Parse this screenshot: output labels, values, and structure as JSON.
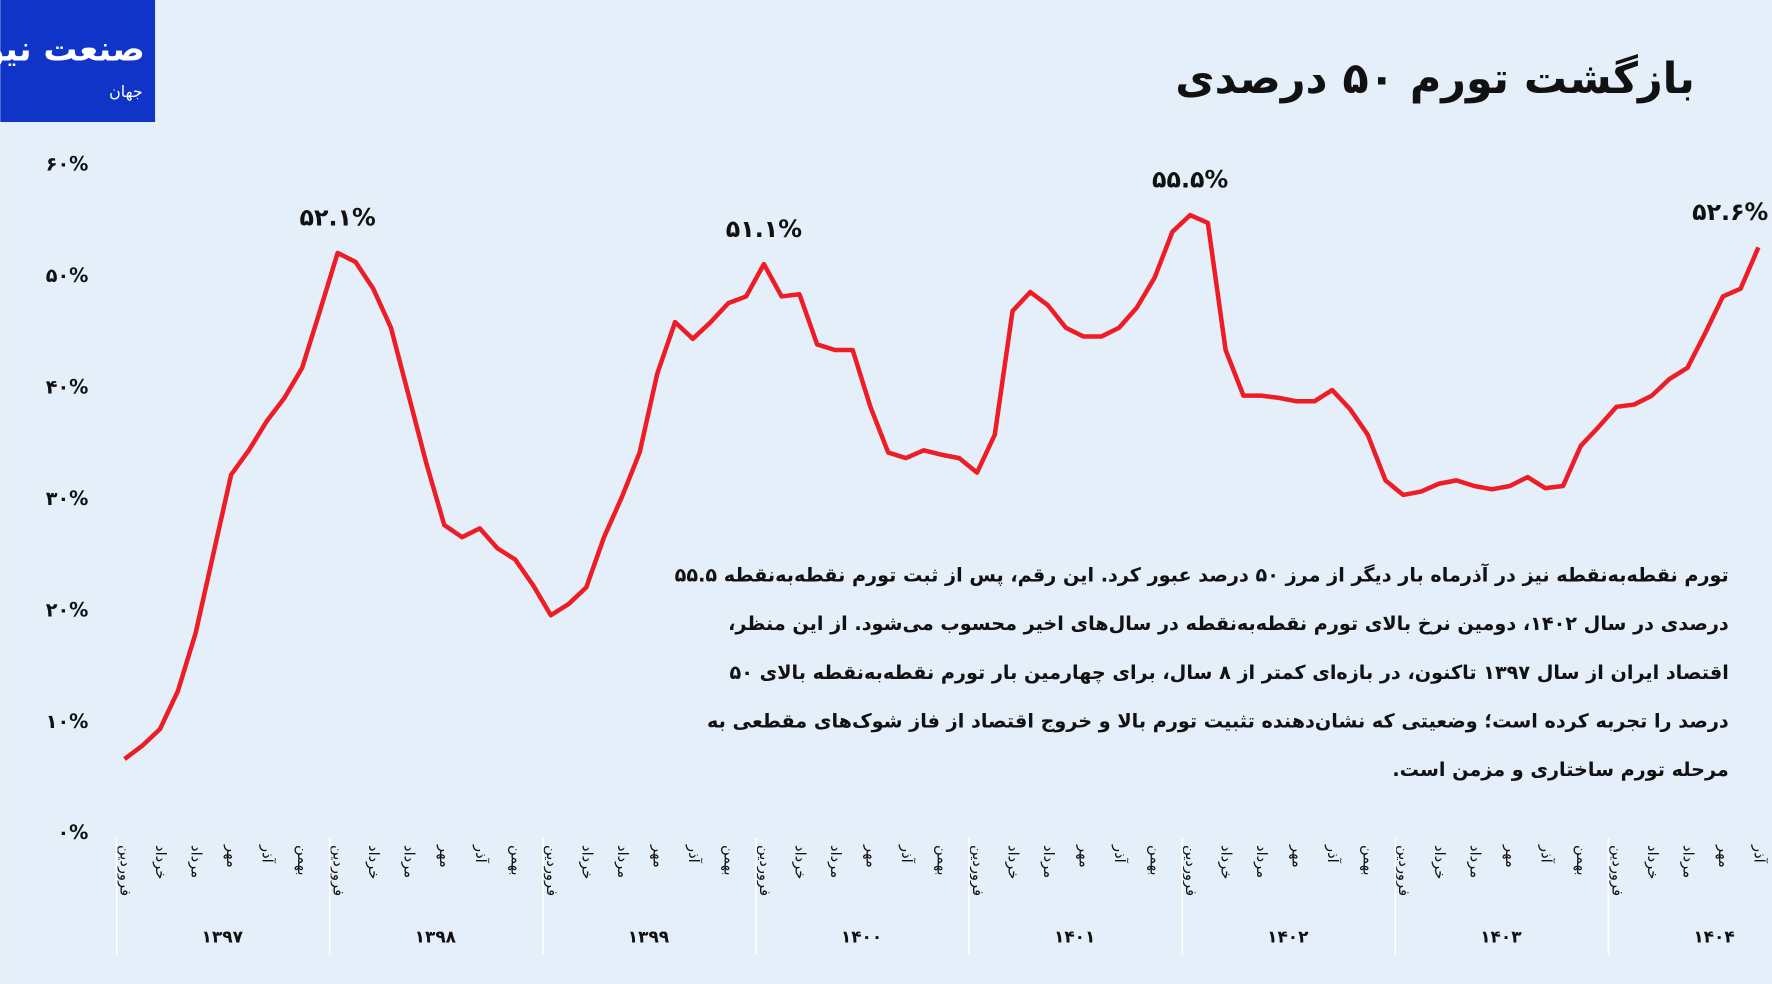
{
  "logo": {
    "main": "صنعت نیوز",
    "sub": "جهان"
  },
  "chart_data": {
    "type": "line",
    "title": "بازگشت تورم ۵۰ درصدی",
    "text": [
      "تورم نقطه‌به‌نقطه نیز در آذرماه بار دیگر از مرز ۵۰ درصد عبور کرد. این رقم، پس از ثبت تورم نقطه‌به‌نقطه ۵۵.۵",
      "درصدی در سال ۱۴۰۲، دومین نرخ بالای تورم نقطه‌به‌نقطه در سال‌های اخیر محسوب می‌شود. از این منظر،",
      "اقتصاد ایران از سال ۱۳۹۷ تاکنون، در بازه‌ای کمتر از ۸ سال، برای چهارمین بار تورم نقطه‌به‌نقطه بالای ۵۰",
      "درصد را تجربه کرده است؛ وضعیتی که نشان‌دهنده تثبیت تورم بالا و خروج اقتصاد از فاز شوک‌های مقطعی به",
      "مرحله تورم ساختاری و مزمن است."
    ],
    "groups": [
      "۱۳۹۷",
      "۱۳۹۸",
      "۱۳۹۹",
      "۱۴۰۰",
      "۱۴۰۱",
      "۱۴۰۲",
      "۱۴۰۳",
      "۱۴۰۴"
    ],
    "categories": [
      "فروردین",
      null,
      "خرداد",
      null,
      "مرداد",
      null,
      "مهر",
      null,
      "آذر",
      null,
      "بهمن",
      null,
      "فروردین",
      null,
      "خرداد",
      null,
      "مرداد",
      null,
      "مهر",
      null,
      "آذر",
      null,
      "بهمن",
      null,
      "فروردین",
      null,
      "خرداد",
      null,
      "مرداد",
      null,
      "مهر",
      null,
      "آذر",
      null,
      "بهمن",
      null,
      "فروردین",
      null,
      "خرداد",
      null,
      "مرداد",
      null,
      "مهر",
      null,
      "آذر",
      null,
      "بهمن",
      null,
      "فروردین",
      null,
      "خرداد",
      null,
      "مرداد",
      null,
      "مهر",
      null,
      "آذر",
      null,
      "بهمن",
      null,
      "فروردین",
      null,
      "خرداد",
      null,
      "مرداد",
      null,
      "مهر",
      null,
      "آذر",
      null,
      "بهمن",
      null,
      "فروردین",
      null,
      "خرداد",
      null,
      "مرداد",
      null,
      "مهر",
      null,
      "آذر",
      null,
      "بهمن",
      null,
      "فروردین",
      null,
      "خرداد",
      null,
      "مرداد",
      null,
      "مهر",
      null,
      "آذر"
    ],
    "series": [
      {
        "color": "#ee1c25",
        "values": [
          6.7,
          7.9,
          9.4,
          12.8,
          18.0,
          25.1,
          32.2,
          34.4,
          37.0,
          39.1,
          41.8,
          46.9,
          52.1,
          51.3,
          48.9,
          45.4,
          39.3,
          33.2,
          27.7,
          26.6,
          27.4,
          25.6,
          24.6,
          22.3,
          19.6,
          20.6,
          22.1,
          26.6,
          30.2,
          34.2,
          41.3,
          45.9,
          44.4,
          45.9,
          47.6,
          48.2,
          51.1,
          48.2,
          48.4,
          43.9,
          43.4,
          43.4,
          38.3,
          34.2,
          33.7,
          34.4,
          34.0,
          33.7,
          32.4,
          35.8,
          46.9,
          48.6,
          47.4,
          45.4,
          44.6,
          44.6,
          45.4,
          47.2,
          49.9,
          54.0,
          55.5,
          54.8,
          43.4,
          39.3,
          39.3,
          39.1,
          38.8,
          38.8,
          39.8,
          38.1,
          35.8,
          31.7,
          30.4,
          30.7,
          31.4,
          31.7,
          31.2,
          30.9,
          31.2,
          32.0,
          31.0,
          31.2,
          34.8,
          36.5,
          38.3,
          38.5,
          39.3,
          40.8,
          41.8,
          44.9,
          48.2,
          48.9,
          52.6
        ],
        "value_labels": [
          null,
          null,
          null,
          null,
          null,
          null,
          null,
          null,
          null,
          null,
          null,
          null,
          "۵۲.۱%",
          null,
          null,
          null,
          null,
          null,
          null,
          null,
          null,
          null,
          null,
          null,
          null,
          null,
          null,
          null,
          null,
          null,
          null,
          null,
          null,
          null,
          null,
          null,
          "۵۱.۱%",
          null,
          null,
          null,
          null,
          null,
          null,
          null,
          null,
          null,
          null,
          null,
          null,
          null,
          null,
          null,
          null,
          null,
          null,
          null,
          null,
          null,
          null,
          null,
          "۵۵.۵%",
          null,
          null,
          null,
          null,
          null,
          null,
          null,
          null,
          null,
          null,
          null,
          null,
          null,
          null,
          null,
          null,
          null,
          null,
          null,
          null,
          null,
          null,
          null,
          null,
          null,
          null,
          null,
          null,
          null,
          null,
          null,
          "۵۲.۶%"
        ]
      }
    ],
    "ylim": [
      0,
      60
    ],
    "yticks": [
      {
        "value": 0,
        "label": "۰%"
      },
      {
        "value": 10,
        "label": "۱۰%"
      },
      {
        "value": 20,
        "label": "۲۰%"
      },
      {
        "value": 30,
        "label": "۳۰%"
      },
      {
        "value": 40,
        "label": "۴۰%"
      },
      {
        "value": 50,
        "label": "۵۰%"
      },
      {
        "value": 60,
        "label": "۶۰%"
      }
    ],
    "grid": false
  }
}
